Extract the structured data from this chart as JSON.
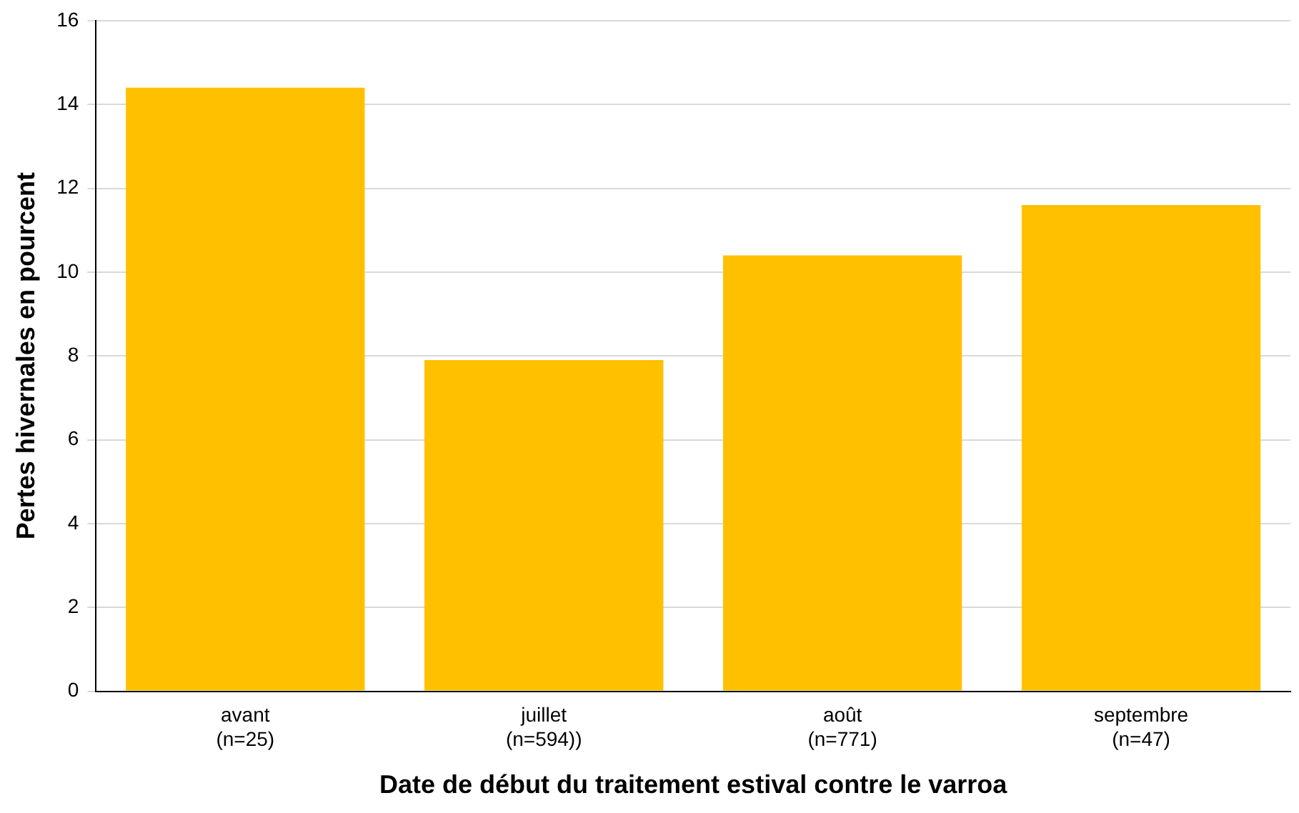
{
  "chart_data": {
    "type": "bar",
    "xlabel": "Date de début du traitement estival contre le varroa",
    "ylabel": "Pertes hivernales en pourcent",
    "categories": [
      "avant\n(n=25)",
      "juillet\n(n=594))",
      "août\n(n=771)",
      "septembre\n(n=47)"
    ],
    "values": [
      14.4,
      7.9,
      10.4,
      11.6
    ],
    "color": "#ffc000",
    "ylim": [
      0,
      16
    ],
    "yticks": [
      0,
      2,
      4,
      6,
      8,
      10,
      12,
      14,
      16
    ],
    "grid": "y",
    "legend": false
  }
}
